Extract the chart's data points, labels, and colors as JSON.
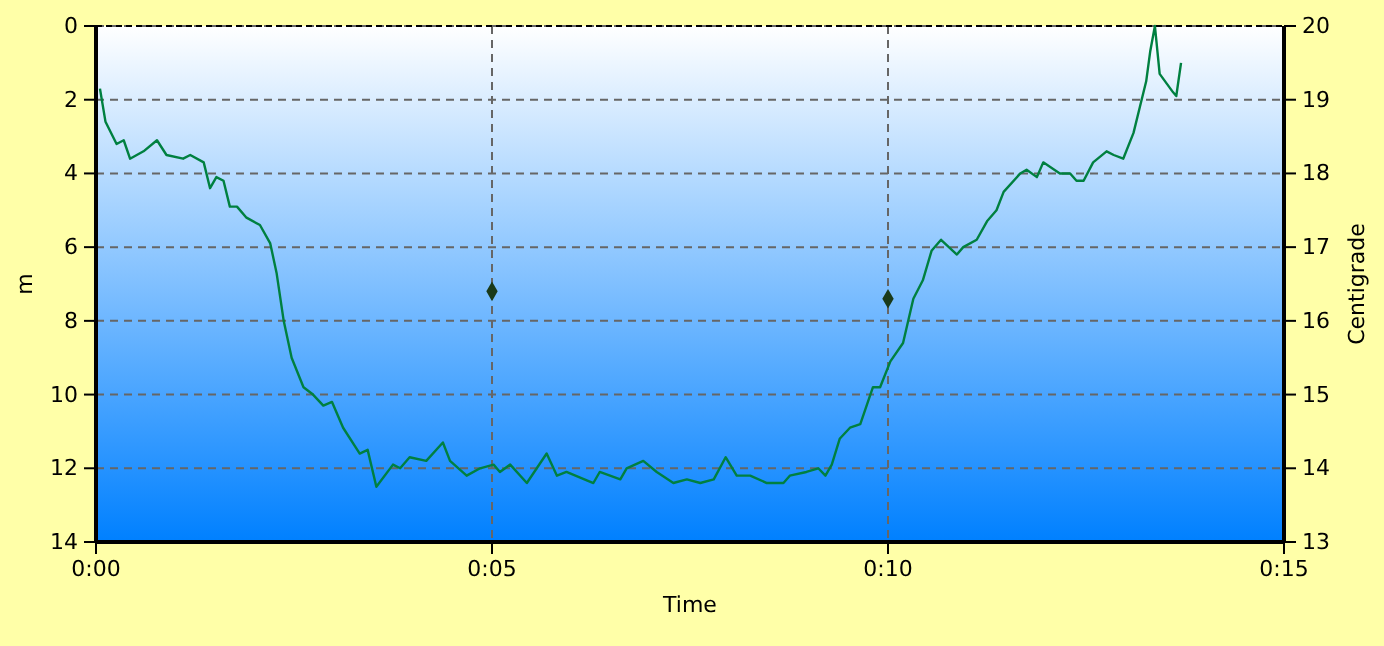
{
  "chart_data": {
    "type": "line",
    "xlabel": "Time",
    "ylabel": "m",
    "y2label": "Centigrade",
    "xlim": [
      0,
      15
    ],
    "xticks": [
      {
        "value": 0,
        "label": "0:00"
      },
      {
        "value": 5,
        "label": "0:05"
      },
      {
        "value": 10,
        "label": "0:10"
      },
      {
        "value": 15,
        "label": "0:15"
      }
    ],
    "ylim": [
      14,
      0
    ],
    "yticks": [
      0,
      2,
      4,
      6,
      8,
      10,
      12,
      14
    ],
    "y2lim": [
      13,
      20
    ],
    "y2ticks": [
      13,
      14,
      15,
      16,
      17,
      18,
      19,
      20
    ],
    "grid": true,
    "series": [
      {
        "color": "#008040",
        "x": [
          0.05,
          0.12,
          0.26,
          0.35,
          0.43,
          0.6,
          0.77,
          0.89,
          1.1,
          1.19,
          1.36,
          1.44,
          1.52,
          1.61,
          1.69,
          1.78,
          1.9,
          2.07,
          2.2,
          2.28,
          2.37,
          2.47,
          2.62,
          2.74,
          2.87,
          2.98,
          3.12,
          3.33,
          3.43,
          3.54,
          3.75,
          3.84,
          3.96,
          4.17,
          4.38,
          4.47,
          4.68,
          4.85,
          5.02,
          5.1,
          5.23,
          5.44,
          5.69,
          5.82,
          5.94,
          6.28,
          6.36,
          6.62,
          6.7,
          6.91,
          7.08,
          7.29,
          7.46,
          7.63,
          7.8,
          7.95,
          8.09,
          8.26,
          8.47,
          8.68,
          8.76,
          8.97,
          9.12,
          9.21,
          9.29,
          9.39,
          9.52,
          9.65,
          9.81,
          9.9,
          10.03,
          10.19,
          10.32,
          10.44,
          10.55,
          10.67,
          10.87,
          10.95,
          11.12,
          11.25,
          11.37,
          11.46,
          11.67,
          11.75,
          11.88,
          11.96,
          12.17,
          12.3,
          12.38,
          12.47,
          12.59,
          12.76,
          12.85,
          12.97,
          13.1,
          13.18,
          13.26,
          13.31,
          13.37,
          13.43,
          13.6,
          13.64,
          13.7
        ],
        "values": [
          1.7,
          2.6,
          3.2,
          3.1,
          3.6,
          3.4,
          3.1,
          3.5,
          3.6,
          3.5,
          3.7,
          4.4,
          4.1,
          4.2,
          4.9,
          4.9,
          5.2,
          5.4,
          5.9,
          6.7,
          8.0,
          9.0,
          9.8,
          10.0,
          10.3,
          10.2,
          10.9,
          11.6,
          11.5,
          12.5,
          11.9,
          12.0,
          11.7,
          11.8,
          11.3,
          11.8,
          12.2,
          12.0,
          11.9,
          12.1,
          11.9,
          12.4,
          11.6,
          12.2,
          12.1,
          12.4,
          12.1,
          12.3,
          12.0,
          11.8,
          12.1,
          12.4,
          12.3,
          12.4,
          12.3,
          11.7,
          12.2,
          12.2,
          12.4,
          12.4,
          12.2,
          12.1,
          12.0,
          12.2,
          11.9,
          11.2,
          10.9,
          10.8,
          9.8,
          9.8,
          9.1,
          8.6,
          7.4,
          6.9,
          6.1,
          5.8,
          6.2,
          6.0,
          5.8,
          5.3,
          5.0,
          4.5,
          4.0,
          3.9,
          4.1,
          3.7,
          4.0,
          4.0,
          4.2,
          4.2,
          3.7,
          3.4,
          3.5,
          3.6,
          2.9,
          2.2,
          1.5,
          0.7,
          0.0,
          1.3,
          1.8,
          1.9,
          1.0
        ]
      },
      {
        "type": "scatter",
        "axis": "y2",
        "color": "#1a3a1a",
        "marker": "diamond",
        "x": [
          5,
          10
        ],
        "values": [
          16.4,
          16.3
        ]
      }
    ]
  }
}
